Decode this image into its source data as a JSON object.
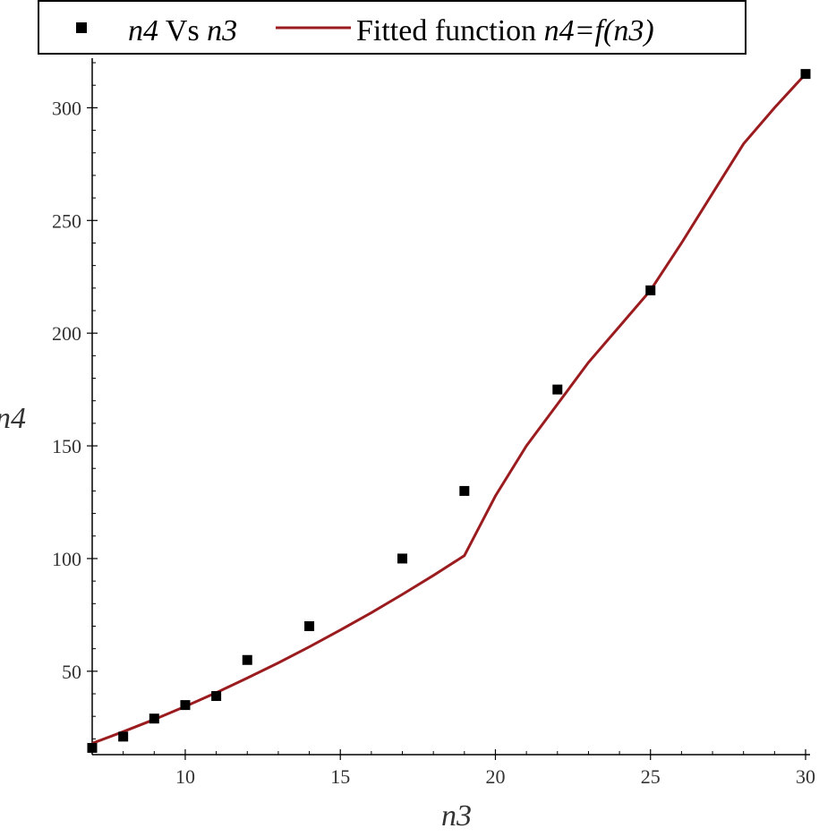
{
  "chart_data": {
    "type": "scatter",
    "title": "",
    "xlabel": "n3",
    "ylabel": "n4",
    "xlim": [
      7,
      30
    ],
    "ylim": [
      13,
      322
    ],
    "x_ticks": [
      10,
      15,
      20,
      25,
      30
    ],
    "y_ticks": [
      50,
      100,
      150,
      200,
      250,
      300
    ],
    "grid": false,
    "legend_position": "top",
    "series": [
      {
        "name": "n4 Vs n3",
        "kind": "scatter",
        "marker": "square",
        "color": "#000000",
        "x": [
          7,
          8,
          9,
          10,
          11,
          12,
          14,
          17,
          19,
          22,
          25,
          30
        ],
        "y": [
          16,
          21,
          29,
          35,
          39,
          55,
          70,
          100,
          130,
          175,
          219,
          315
        ]
      },
      {
        "name": "Fitted function n4=f(n3)",
        "kind": "line",
        "color": "#9b1c1f",
        "x": [
          7,
          8,
          9,
          10,
          11,
          12,
          13,
          14,
          15,
          16,
          17,
          18,
          19,
          20,
          21,
          22,
          23,
          24,
          25,
          26,
          27,
          28,
          29,
          30
        ],
        "y": [
          18,
          23.2,
          28.6,
          34.4,
          40.5,
          47,
          53.7,
          60.8,
          68.3,
          76,
          84.1,
          92.5,
          101.3,
          127.8,
          150,
          168.5,
          187,
          203,
          219,
          240,
          262,
          284,
          300,
          315
        ]
      }
    ],
    "legend": {
      "scatter_label_parts": [
        "n4",
        " Vs ",
        "n3"
      ],
      "line_label_parts": [
        "Fitted function ",
        "n4=f(n3)"
      ]
    }
  }
}
